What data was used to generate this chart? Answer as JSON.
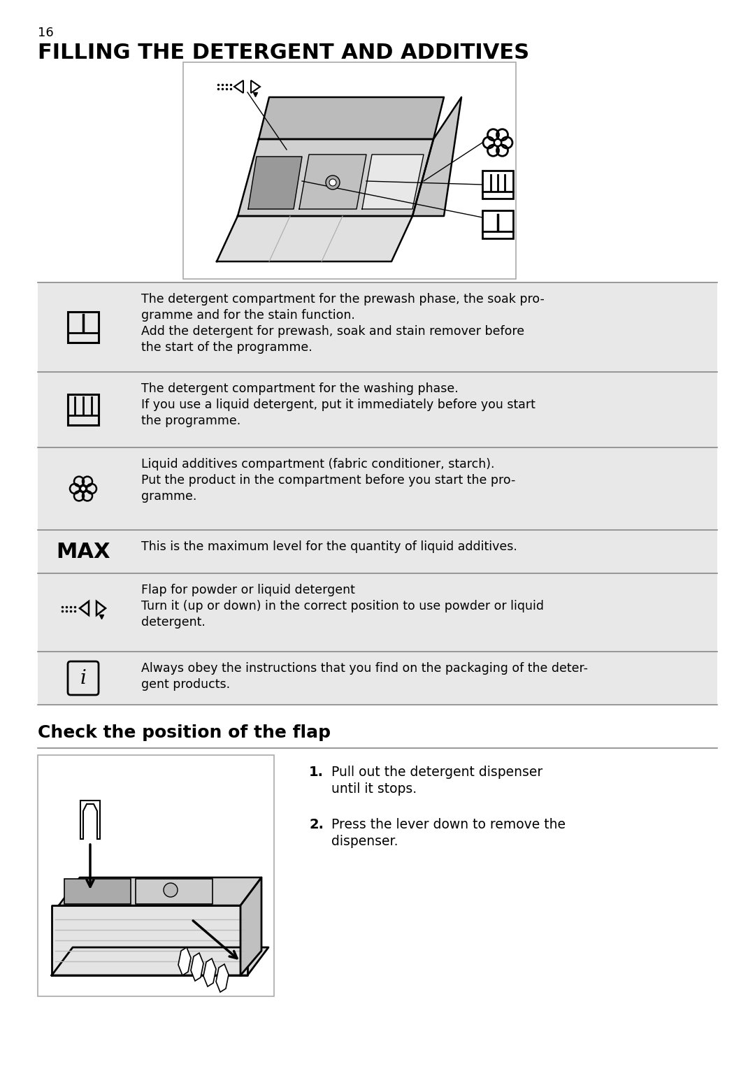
{
  "page_number": "16",
  "title": "FILLING THE DETERGENT AND ADDITIVES",
  "bg_color": "#ffffff",
  "table_bg": "#e8e8e8",
  "section2_title": "Check the position of the flap",
  "table_rows": [
    {
      "symbol": "prewash",
      "text": "The detergent compartment for the prewash phase, the soak pro-\ngramme and for the stain function.\nAdd the detergent for prewash, soak and stain remover before\nthe start of the programme."
    },
    {
      "symbol": "wash",
      "text": "The detergent compartment for the washing phase.\nIf you use a liquid detergent, put it immediately before you start\nthe programme."
    },
    {
      "symbol": "flower",
      "text": "Liquid additives compartment (fabric conditioner, starch).\nPut the product in the compartment before you start the pro-\ngramme."
    },
    {
      "symbol": "MAX",
      "text": "This is the maximum level for the quantity of liquid additives."
    },
    {
      "symbol": "flap",
      "text": "Flap for powder or liquid detergent\nTurn it (up or down) in the correct position to use powder or liquid\ndetergent."
    },
    {
      "symbol": "info",
      "text": "Always obey the instructions that you find on the packaging of the deter-\ngent products."
    }
  ],
  "steps": [
    [
      "Pull out the detergent dispenser",
      "until it stops."
    ],
    [
      "Press the lever down to remove the",
      "dispenser."
    ]
  ],
  "fig_width": 10.8,
  "fig_height": 15.29
}
